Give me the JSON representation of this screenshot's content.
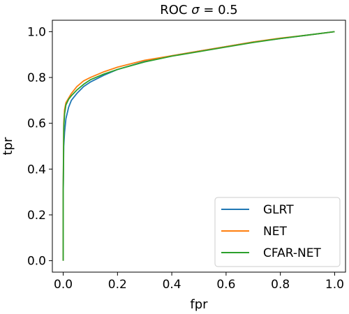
{
  "chart_data": {
    "type": "line",
    "title": "ROC σ = 0.5",
    "title_prefix": "ROC ",
    "title_symbol": "σ",
    "title_suffix": " = 0.5",
    "xlabel": "fpr",
    "ylabel": "tpr",
    "xlim": [
      -0.04,
      1.04
    ],
    "ylim": [
      -0.05,
      1.05
    ],
    "xticks": [
      0.0,
      0.2,
      0.4,
      0.6,
      0.8,
      1.0
    ],
    "xtick_labels": [
      "0.0",
      "0.2",
      "0.4",
      "0.6",
      "0.8",
      "1.0"
    ],
    "yticks": [
      0.0,
      0.2,
      0.4,
      0.6,
      0.8,
      1.0
    ],
    "ytick_labels": [
      "0.0",
      "0.2",
      "0.4",
      "0.6",
      "0.8",
      "1.0"
    ],
    "grid": false,
    "legend_position": "lower-right",
    "series": [
      {
        "name": "GLRT",
        "color": "#1f77b4",
        "x": [
          0,
          0,
          0.002,
          0.005,
          0.01,
          0.02,
          0.03,
          0.05,
          0.075,
          0.1,
          0.15,
          0.2,
          0.3,
          0.4,
          0.5,
          0.6,
          0.7,
          0.8,
          0.9,
          1.0
        ],
        "y": [
          0,
          0.3,
          0.5,
          0.56,
          0.62,
          0.67,
          0.7,
          0.73,
          0.76,
          0.78,
          0.81,
          0.835,
          0.87,
          0.895,
          0.915,
          0.935,
          0.955,
          0.97,
          0.985,
          1.0
        ]
      },
      {
        "name": "NET",
        "color": "#ff7f0e",
        "x": [
          0,
          0,
          0.002,
          0.005,
          0.01,
          0.02,
          0.03,
          0.05,
          0.075,
          0.1,
          0.15,
          0.2,
          0.3,
          0.4,
          0.5,
          0.6,
          0.7,
          0.8,
          0.9,
          1.0
        ],
        "y": [
          0,
          0.3,
          0.6,
          0.66,
          0.69,
          0.71,
          0.73,
          0.76,
          0.785,
          0.8,
          0.825,
          0.845,
          0.875,
          0.895,
          0.915,
          0.935,
          0.955,
          0.972,
          0.985,
          1.0
        ]
      },
      {
        "name": "CFAR-NET",
        "color": "#2ca02c",
        "x": [
          0,
          0,
          0.002,
          0.005,
          0.01,
          0.02,
          0.03,
          0.05,
          0.075,
          0.1,
          0.15,
          0.2,
          0.3,
          0.4,
          0.5,
          0.6,
          0.7,
          0.8,
          0.9,
          1.0
        ],
        "y": [
          0,
          0.3,
          0.58,
          0.64,
          0.68,
          0.705,
          0.72,
          0.745,
          0.77,
          0.79,
          0.815,
          0.835,
          0.868,
          0.893,
          0.913,
          0.933,
          0.953,
          0.97,
          0.985,
          1.0
        ]
      }
    ]
  }
}
